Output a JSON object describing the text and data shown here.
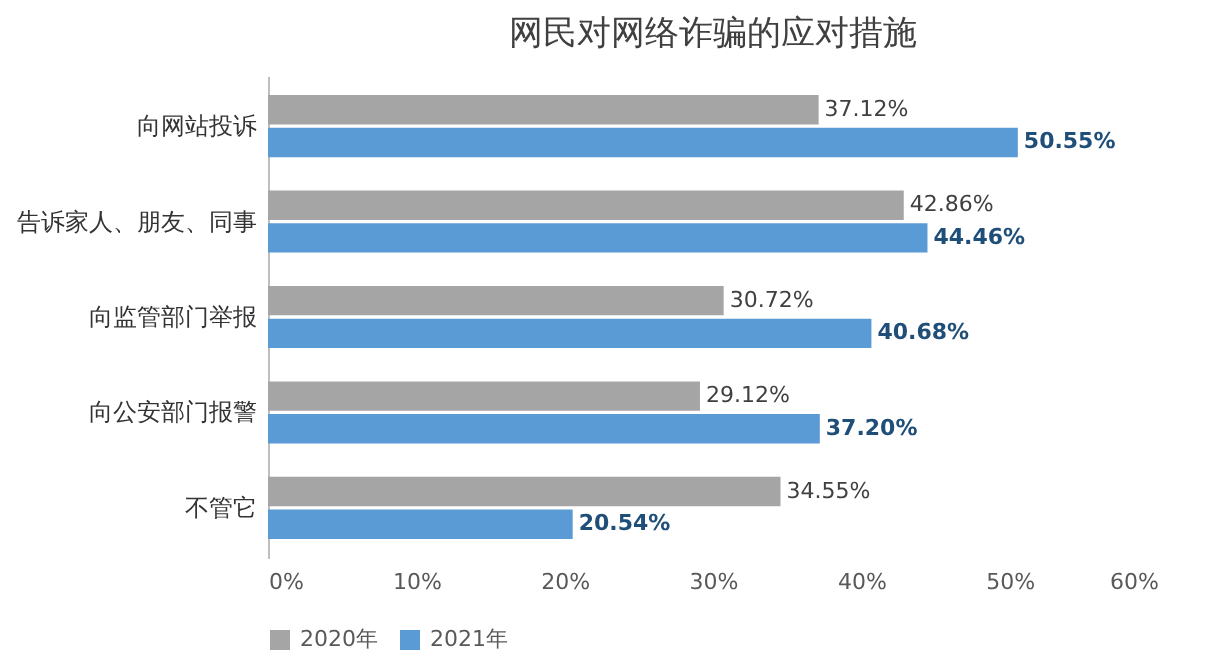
{
  "chart_data": {
    "type": "bar",
    "orientation": "horizontal",
    "title": "网民对网络诈骗的应对措施",
    "categories": [
      "向网站投诉",
      "告诉家人、朋友、同事",
      "向监管部门举报",
      "向公安部门报警",
      "不管它"
    ],
    "series": [
      {
        "name": "2020年",
        "color": "#a5a5a5",
        "values": [
          37.12,
          42.86,
          30.72,
          29.12,
          34.55
        ],
        "value_labels": [
          "37.12%",
          "42.86%",
          "30.72%",
          "29.12%",
          "34.55%"
        ]
      },
      {
        "name": "2021年",
        "color": "#5b9bd5",
        "values": [
          50.55,
          44.46,
          40.68,
          37.2,
          20.54
        ],
        "value_labels": [
          "50.55%",
          "44.46%",
          "40.68%",
          "37.20%",
          "20.54%"
        ]
      }
    ],
    "xlim": [
      0,
      60
    ],
    "xticks": [
      {
        "value": 0,
        "label": "0%"
      },
      {
        "value": 10,
        "label": "10%"
      },
      {
        "value": 20,
        "label": "20%"
      },
      {
        "value": 30,
        "label": "30%"
      },
      {
        "value": 40,
        "label": "40%"
      },
      {
        "value": 50,
        "label": "50%"
      },
      {
        "value": 60,
        "label": "60%"
      }
    ],
    "grid": false,
    "legend": "bottom"
  }
}
